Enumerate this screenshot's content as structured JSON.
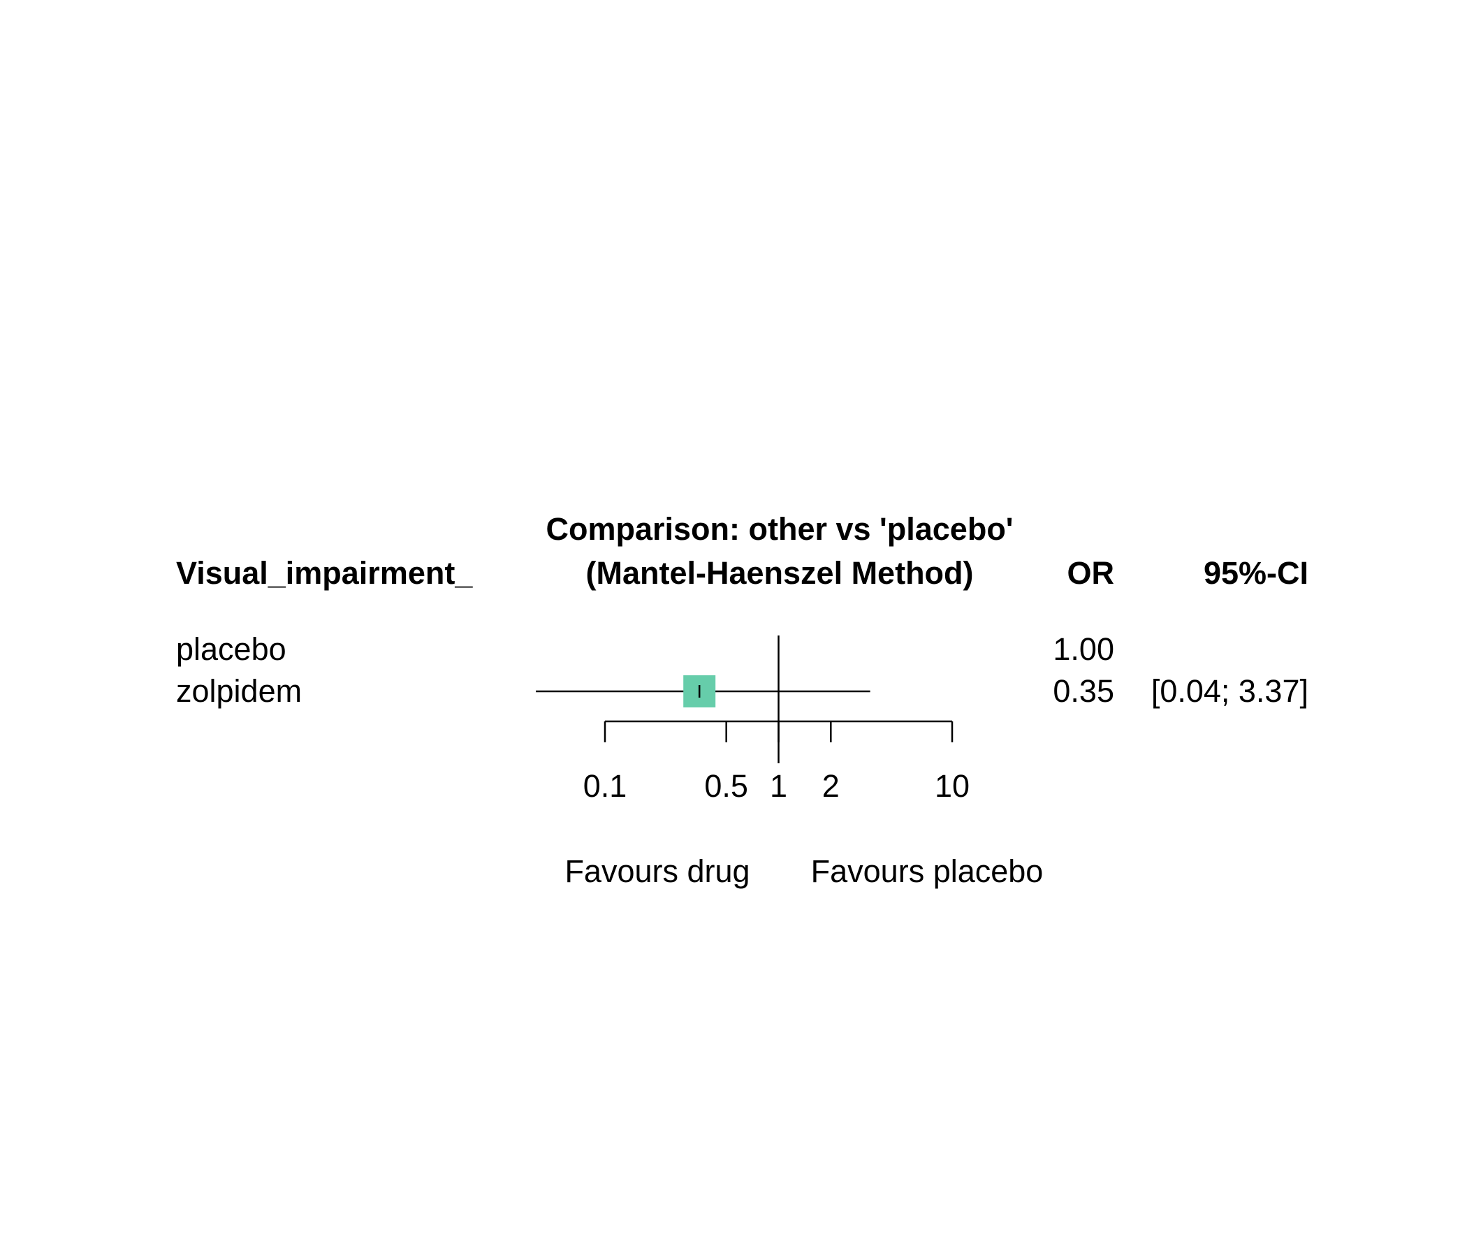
{
  "chart_data": {
    "type": "forest",
    "title": "Comparison: other vs 'placebo'",
    "subtitle": "(Mantel-Haenszel Method)",
    "columns": {
      "study": "Visual_impairment_",
      "effect": "OR",
      "ci": "95%-CI"
    },
    "scale": "log",
    "reference_value": 1,
    "xlim": [
      0.1,
      10
    ],
    "x_ticks": [
      0.1,
      0.5,
      1,
      2,
      10
    ],
    "x_tick_labels": [
      "0.1",
      "0.5",
      "1",
      "2",
      "10"
    ],
    "favours_left": "Favours drug",
    "favours_right": "Favours placebo",
    "rows": [
      {
        "label": "placebo",
        "or": 1.0,
        "or_text": "1.00",
        "ci_text": "",
        "is_reference": true
      },
      {
        "label": "zolpidem",
        "or": 0.35,
        "lower": 0.04,
        "upper": 3.37,
        "or_text": "0.35",
        "ci_text": "[0.04; 3.37]",
        "is_reference": false
      }
    ],
    "colors": {
      "box": "#66cdaa",
      "lines": "#000000"
    }
  }
}
